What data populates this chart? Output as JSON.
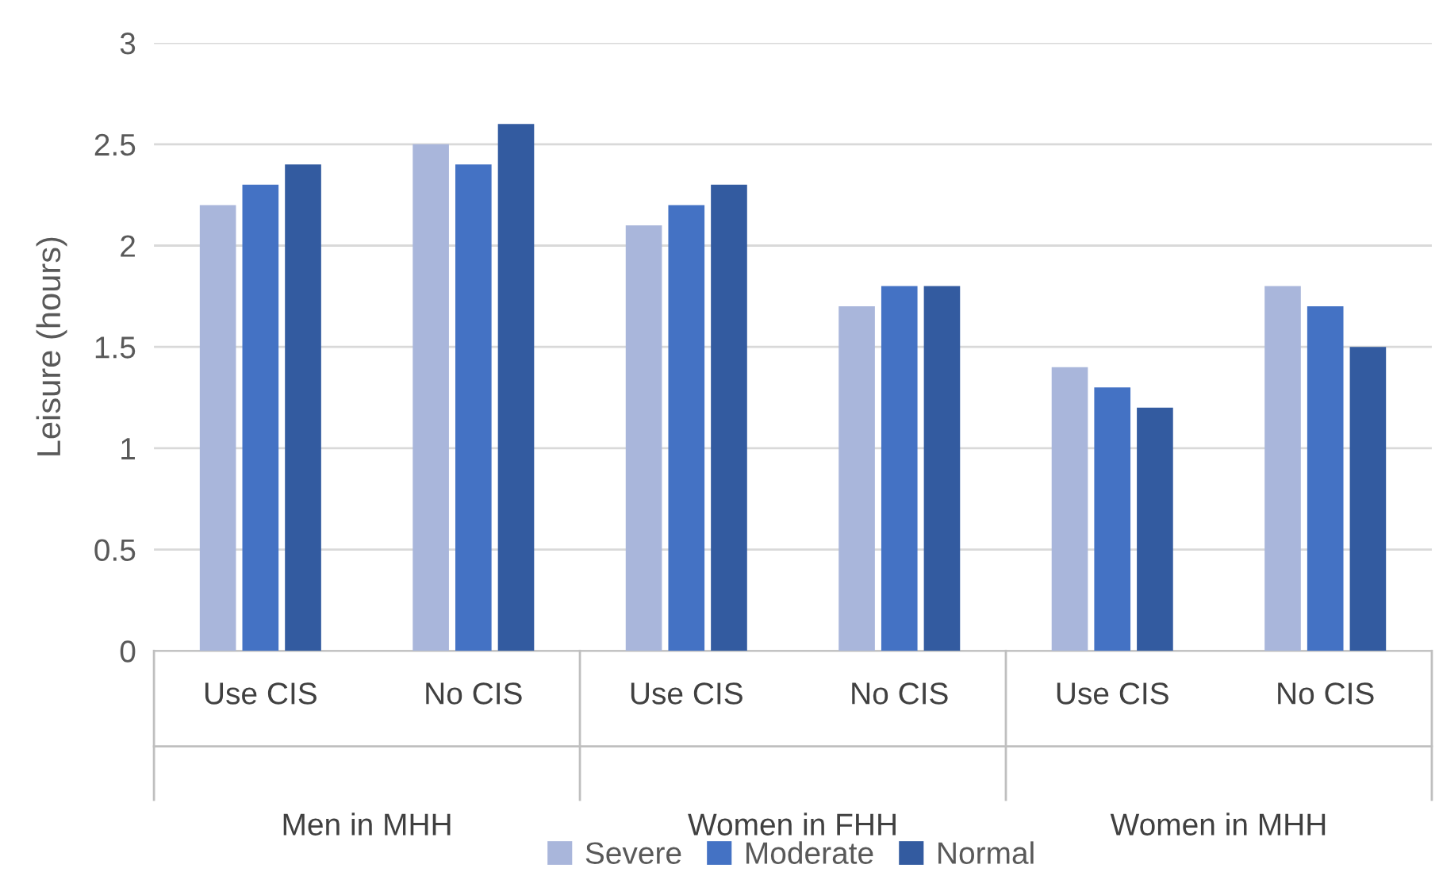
{
  "chart_data": {
    "type": "bar",
    "categories": [
      "Use CIS",
      "No CIS",
      "Use CIS",
      "No CIS",
      "Use CIS",
      "No CIS"
    ],
    "annotations": [
      "Men in MHH",
      "Women in FHH",
      "Women in MHH"
    ],
    "ylabel": "Leisure (hours)",
    "series": [
      {
        "name": "Severe",
        "color": "#a9b6db",
        "values": [
          2.2,
          2.5,
          2.1,
          1.7,
          1.4,
          1.8
        ]
      },
      {
        "name": "Moderate",
        "color": "#4472c4",
        "values": [
          2.3,
          2.4,
          2.2,
          1.8,
          1.3,
          1.7
        ]
      },
      {
        "name": "Normal",
        "color": "#335ba0",
        "values": [
          2.4,
          2.6,
          2.3,
          1.8,
          1.2,
          1.5
        ]
      }
    ],
    "ylim": [
      0,
      3
    ],
    "yticks": [
      0,
      0.5,
      1,
      1.5,
      2,
      2.5,
      3
    ],
    "grid": "y",
    "legend": "bottom"
  }
}
